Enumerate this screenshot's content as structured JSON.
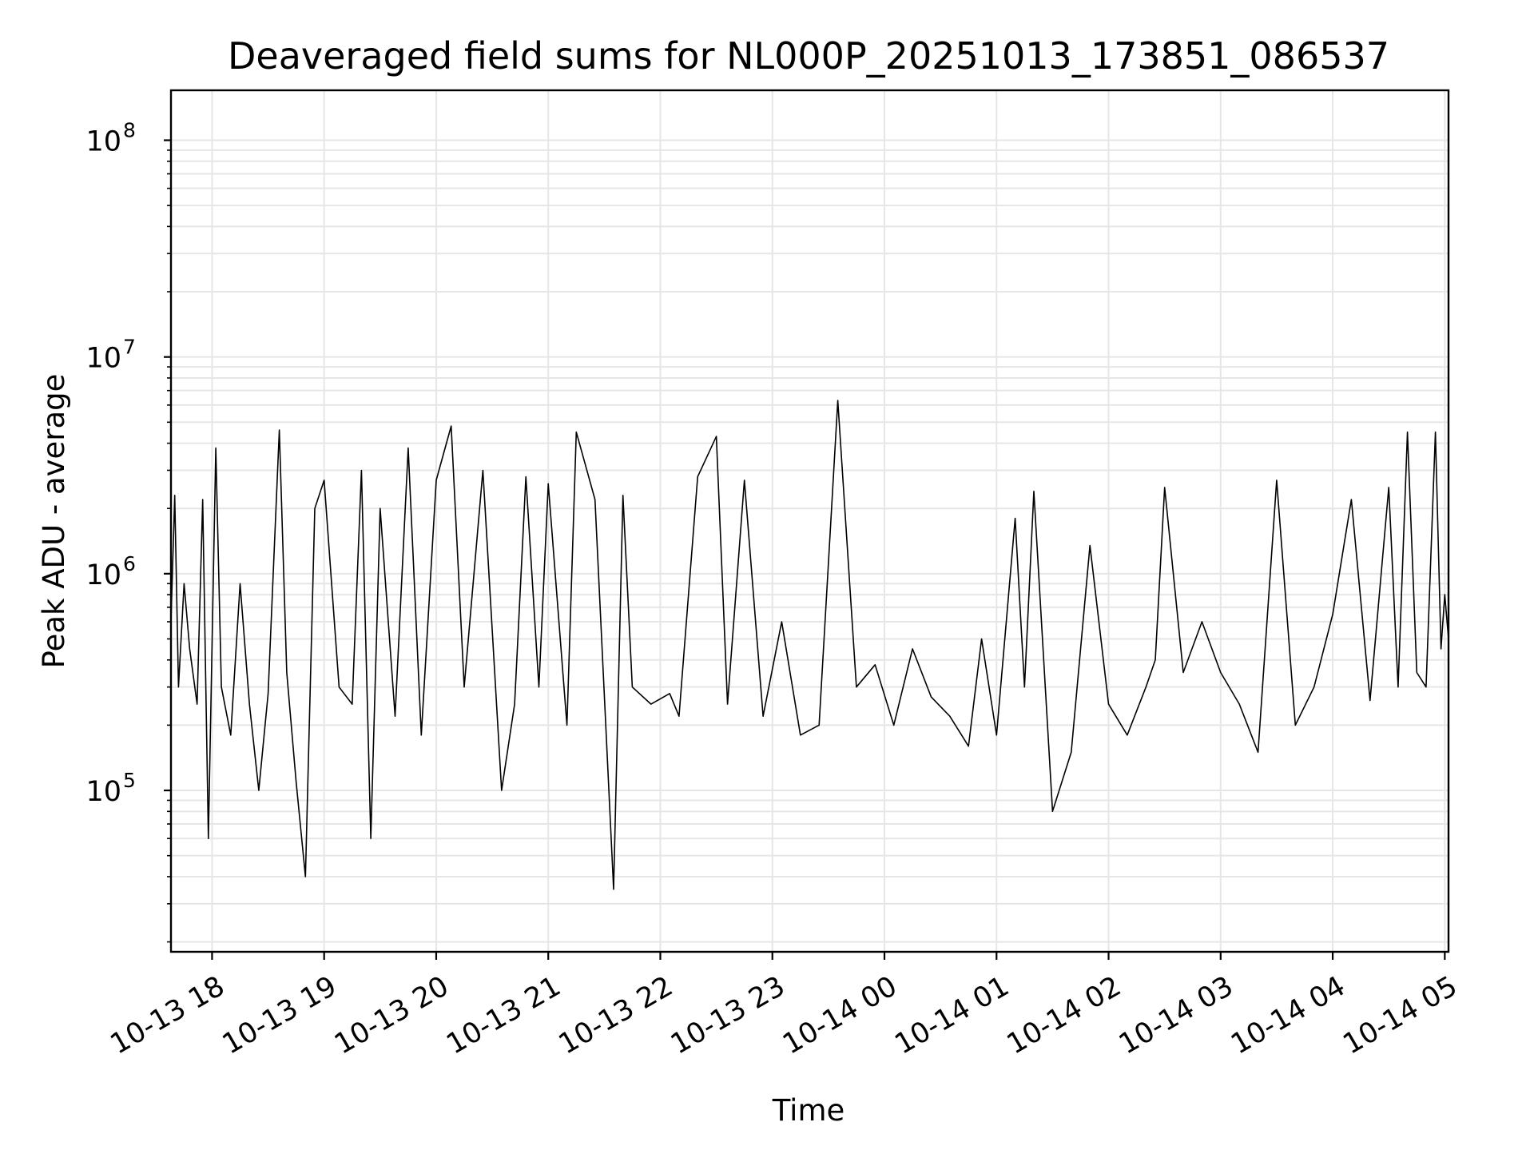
{
  "chart_data": {
    "type": "line",
    "title": "Deaveraged field sums for NL000P_20251013_173851_086537",
    "xlabel": "Time",
    "ylabel": "Peak ADU - average",
    "yscale": "log",
    "grid": true,
    "grid_color": "#e6e6e6",
    "line_color": "#000000",
    "xlim": [
      "2025-10-13 17:38",
      "2025-10-14 05:02"
    ],
    "ylim": [
      18000,
      170000000
    ],
    "x_ticks": [
      "10-13 18",
      "10-13 19",
      "10-13 20",
      "10-13 21",
      "10-13 22",
      "10-13 23",
      "10-14 00",
      "10-14 01",
      "10-14 02",
      "10-14 03",
      "10-14 04",
      "10-14 05"
    ],
    "y_ticks": [
      {
        "value": 100000,
        "base": "10",
        "exp": "5"
      },
      {
        "value": 1000000,
        "base": "10",
        "exp": "6"
      },
      {
        "value": 10000000,
        "base": "10",
        "exp": "7"
      },
      {
        "value": 100000000,
        "base": "10",
        "exp": "8"
      }
    ],
    "series": [
      {
        "x": [
          "2025-10-13 17:38",
          "2025-10-13 17:40",
          "2025-10-13 17:42",
          "2025-10-13 17:45",
          "2025-10-13 17:48",
          "2025-10-13 17:52",
          "2025-10-13 17:55",
          "2025-10-13 17:58",
          "2025-10-13 18:02",
          "2025-10-13 18:05",
          "2025-10-13 18:10",
          "2025-10-13 18:15",
          "2025-10-13 18:20",
          "2025-10-13 18:25",
          "2025-10-13 18:30",
          "2025-10-13 18:36",
          "2025-10-13 18:40",
          "2025-10-13 18:45",
          "2025-10-13 18:50",
          "2025-10-13 18:55",
          "2025-10-13 19:00",
          "2025-10-13 19:08",
          "2025-10-13 19:15",
          "2025-10-13 19:20",
          "2025-10-13 19:25",
          "2025-10-13 19:30",
          "2025-10-13 19:38",
          "2025-10-13 19:45",
          "2025-10-13 19:52",
          "2025-10-13 20:00",
          "2025-10-13 20:08",
          "2025-10-13 20:15",
          "2025-10-13 20:25",
          "2025-10-13 20:35",
          "2025-10-13 20:42",
          "2025-10-13 20:48",
          "2025-10-13 20:55",
          "2025-10-13 21:00",
          "2025-10-13 21:10",
          "2025-10-13 21:15",
          "2025-10-13 21:25",
          "2025-10-13 21:35",
          "2025-10-13 21:40",
          "2025-10-13 21:45",
          "2025-10-13 21:55",
          "2025-10-13 22:05",
          "2025-10-13 22:10",
          "2025-10-13 22:20",
          "2025-10-13 22:30",
          "2025-10-13 22:36",
          "2025-10-13 22:45",
          "2025-10-13 22:55",
          "2025-10-13 23:05",
          "2025-10-13 23:15",
          "2025-10-13 23:25",
          "2025-10-13 23:35",
          "2025-10-13 23:45",
          "2025-10-13 23:55",
          "2025-10-14 00:05",
          "2025-10-14 00:15",
          "2025-10-14 00:25",
          "2025-10-14 00:35",
          "2025-10-14 00:45",
          "2025-10-14 00:52",
          "2025-10-14 01:00",
          "2025-10-14 01:10",
          "2025-10-14 01:15",
          "2025-10-14 01:20",
          "2025-10-14 01:30",
          "2025-10-14 01:40",
          "2025-10-14 01:50",
          "2025-10-14 02:00",
          "2025-10-14 02:10",
          "2025-10-14 02:20",
          "2025-10-14 02:25",
          "2025-10-14 02:30",
          "2025-10-14 02:40",
          "2025-10-14 02:50",
          "2025-10-14 03:00",
          "2025-10-14 03:10",
          "2025-10-14 03:20",
          "2025-10-14 03:30",
          "2025-10-14 03:40",
          "2025-10-14 03:50",
          "2025-10-14 04:00",
          "2025-10-14 04:10",
          "2025-10-14 04:20",
          "2025-10-14 04:30",
          "2025-10-14 04:35",
          "2025-10-14 04:40",
          "2025-10-14 04:45",
          "2025-10-14 04:50",
          "2025-10-14 04:55",
          "2025-10-14 04:58",
          "2025-10-14 05:00",
          "2025-10-14 05:02"
        ],
        "values": [
          600000,
          2300000,
          300000,
          900000,
          450000,
          250000,
          2200000,
          60000,
          3800000,
          300000,
          180000,
          900000,
          250000,
          100000,
          280000,
          4600000,
          350000,
          110000,
          40000,
          2000000,
          2700000,
          300000,
          250000,
          3000000,
          60000,
          2000000,
          220000,
          3800000,
          180000,
          2700000,
          4800000,
          300000,
          3000000,
          100000,
          250000,
          2800000,
          300000,
          2600000,
          200000,
          4500000,
          2200000,
          35000,
          2300000,
          300000,
          250000,
          280000,
          220000,
          2800000,
          4300000,
          250000,
          2700000,
          220000,
          600000,
          180000,
          200000,
          6300000,
          300000,
          380000,
          200000,
          450000,
          270000,
          220000,
          160000,
          500000,
          180000,
          1800000,
          300000,
          2400000,
          80000,
          150000,
          1350000,
          250000,
          180000,
          300000,
          400000,
          2500000,
          350000,
          600000,
          350000,
          250000,
          150000,
          2700000,
          200000,
          300000,
          650000,
          2200000,
          260000,
          2500000,
          300000,
          4500000,
          350000,
          300000,
          4500000,
          450000,
          800000,
          500000
        ]
      }
    ]
  }
}
